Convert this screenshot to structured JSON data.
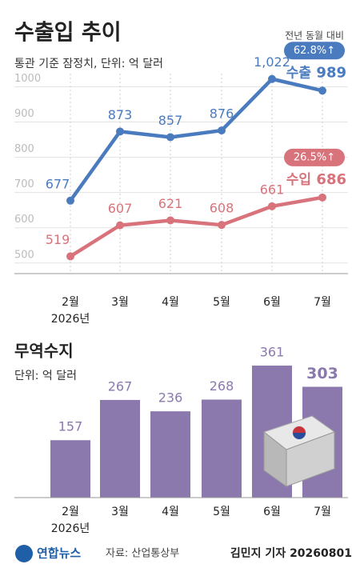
{
  "chart_data": [
    {
      "type": "line",
      "title": "수출입 추이",
      "subtitle": "통관 기준 잠정치, 단위: 억 달러",
      "annotation": "전년 동월 대비",
      "categories": [
        "2월",
        "3월",
        "4월",
        "5월",
        "6월",
        "7월"
      ],
      "year_label": "2026년",
      "series": [
        {
          "name": "수출",
          "color": "#4a7bbf",
          "values": [
            677,
            873,
            857,
            876,
            1022,
            989
          ],
          "value_labels": [
            "677",
            "873",
            "857",
            "876",
            "1,022",
            "989"
          ],
          "change_label": "62.8%↑"
        },
        {
          "name": "수입",
          "color": "#d9737b",
          "values": [
            519,
            607,
            621,
            608,
            661,
            686
          ],
          "change_label": "26.5%↑"
        }
      ],
      "ylim": [
        470,
        1060
      ],
      "yticks": [
        500,
        600,
        700,
        800,
        900,
        1000
      ],
      "grid": true
    },
    {
      "type": "bar",
      "title": "무역수지",
      "subtitle": "단위: 억 달러",
      "categories": [
        "2월",
        "3월",
        "4월",
        "5월",
        "6월",
        "7월"
      ],
      "year_label": "2026년",
      "values": [
        157,
        267,
        236,
        268,
        361,
        303
      ],
      "color": "#8b79ad",
      "ylim": [
        0,
        420
      ]
    }
  ],
  "footer": {
    "logo": "연합뉴스",
    "source": "자료: 산업통상부",
    "credit": "김민지 기자 20260801"
  }
}
